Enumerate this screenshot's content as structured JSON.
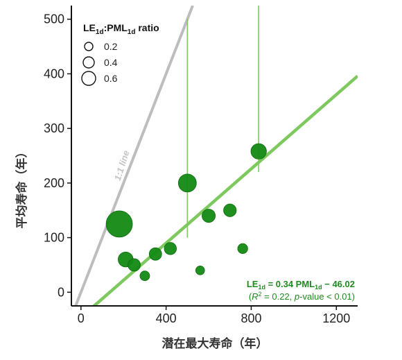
{
  "chart_data": {
    "type": "scatter",
    "xlabel": "潜在最大寿命（年）",
    "ylabel": "平均寿命（年）",
    "xlim": [
      -45,
      1300
    ],
    "ylim": [
      -25,
      525
    ],
    "x_ticks": [
      0,
      400,
      800,
      1200
    ],
    "y_ticks": [
      0,
      100,
      200,
      300,
      400,
      500
    ],
    "grid": false,
    "legend": {
      "position": "top-left",
      "title_parts": {
        "a": "LE",
        "b": "1d",
        "c": ":PML",
        "d": "1d",
        "e": " ratio"
      },
      "entries": [
        {
          "label": "0.2",
          "ratio": 0.2
        },
        {
          "label": "0.4",
          "ratio": 0.4
        },
        {
          "label": "0.6",
          "ratio": 0.6
        }
      ]
    },
    "reference_line": {
      "label": "1:1 line",
      "slope": 1,
      "intercept": 0,
      "color": "#bdbdbd"
    },
    "fit_line": {
      "slope": 0.34,
      "intercept": -46.02,
      "color": "#7dc95e"
    },
    "equation": {
      "le": "LE",
      "le_sub": "1d",
      "mid": " = 0.34 PML",
      "pml_sub": "1d",
      "tail": " − 46.02",
      "stats_open": "(",
      "r": "R",
      "r_sup": "2",
      "stats_mid": " = 0.22, ",
      "p": "p",
      "stats_tail": "-value < 0.01)"
    },
    "colors": {
      "point": "#138a13",
      "point_edge": "#0e6b0e",
      "errorbar": "#7dc95e"
    },
    "points": [
      {
        "x": 835,
        "y": 258,
        "r": 0.31,
        "xerr": [
          0,
          0
        ],
        "yerr": [
          38,
          442
        ]
      },
      {
        "x": 500,
        "y": 200,
        "r": 0.4,
        "xerr": [
          0,
          0
        ],
        "yerr": [
          100,
          300
        ]
      },
      {
        "x": 180,
        "y": 125,
        "r": 0.7,
        "xerr": [
          0,
          0
        ],
        "yerr": [
          0,
          0
        ]
      },
      {
        "x": 210,
        "y": 60,
        "r": 0.29,
        "xerr": [
          0,
          0
        ],
        "yerr": [
          0,
          0
        ]
      },
      {
        "x": 250,
        "y": 50,
        "r": 0.2,
        "xerr": [
          0,
          0
        ],
        "yerr": [
          0,
          0
        ]
      },
      {
        "x": 300,
        "y": 30,
        "r": 0.1,
        "xerr": [
          0,
          0
        ],
        "yerr": [
          0,
          0
        ]
      },
      {
        "x": 350,
        "y": 70,
        "r": 0.2,
        "xerr": [
          0,
          0
        ],
        "yerr": [
          0,
          0
        ]
      },
      {
        "x": 420,
        "y": 80,
        "r": 0.19,
        "xerr": [
          0,
          0
        ],
        "yerr": [
          0,
          0
        ]
      },
      {
        "x": 600,
        "y": 140,
        "r": 0.23,
        "xerr": [
          0,
          0
        ],
        "yerr": [
          0,
          0
        ]
      },
      {
        "x": 700,
        "y": 150,
        "r": 0.21,
        "xerr": [
          0,
          0
        ],
        "yerr": [
          0,
          0
        ]
      },
      {
        "x": 760,
        "y": 80,
        "r": 0.11,
        "xerr": [
          0,
          0
        ],
        "yerr": [
          0,
          0
        ]
      },
      {
        "x": 560,
        "y": 40,
        "r": 0.07,
        "xerr": [
          0,
          0
        ],
        "yerr": [
          0,
          0
        ]
      }
    ]
  }
}
